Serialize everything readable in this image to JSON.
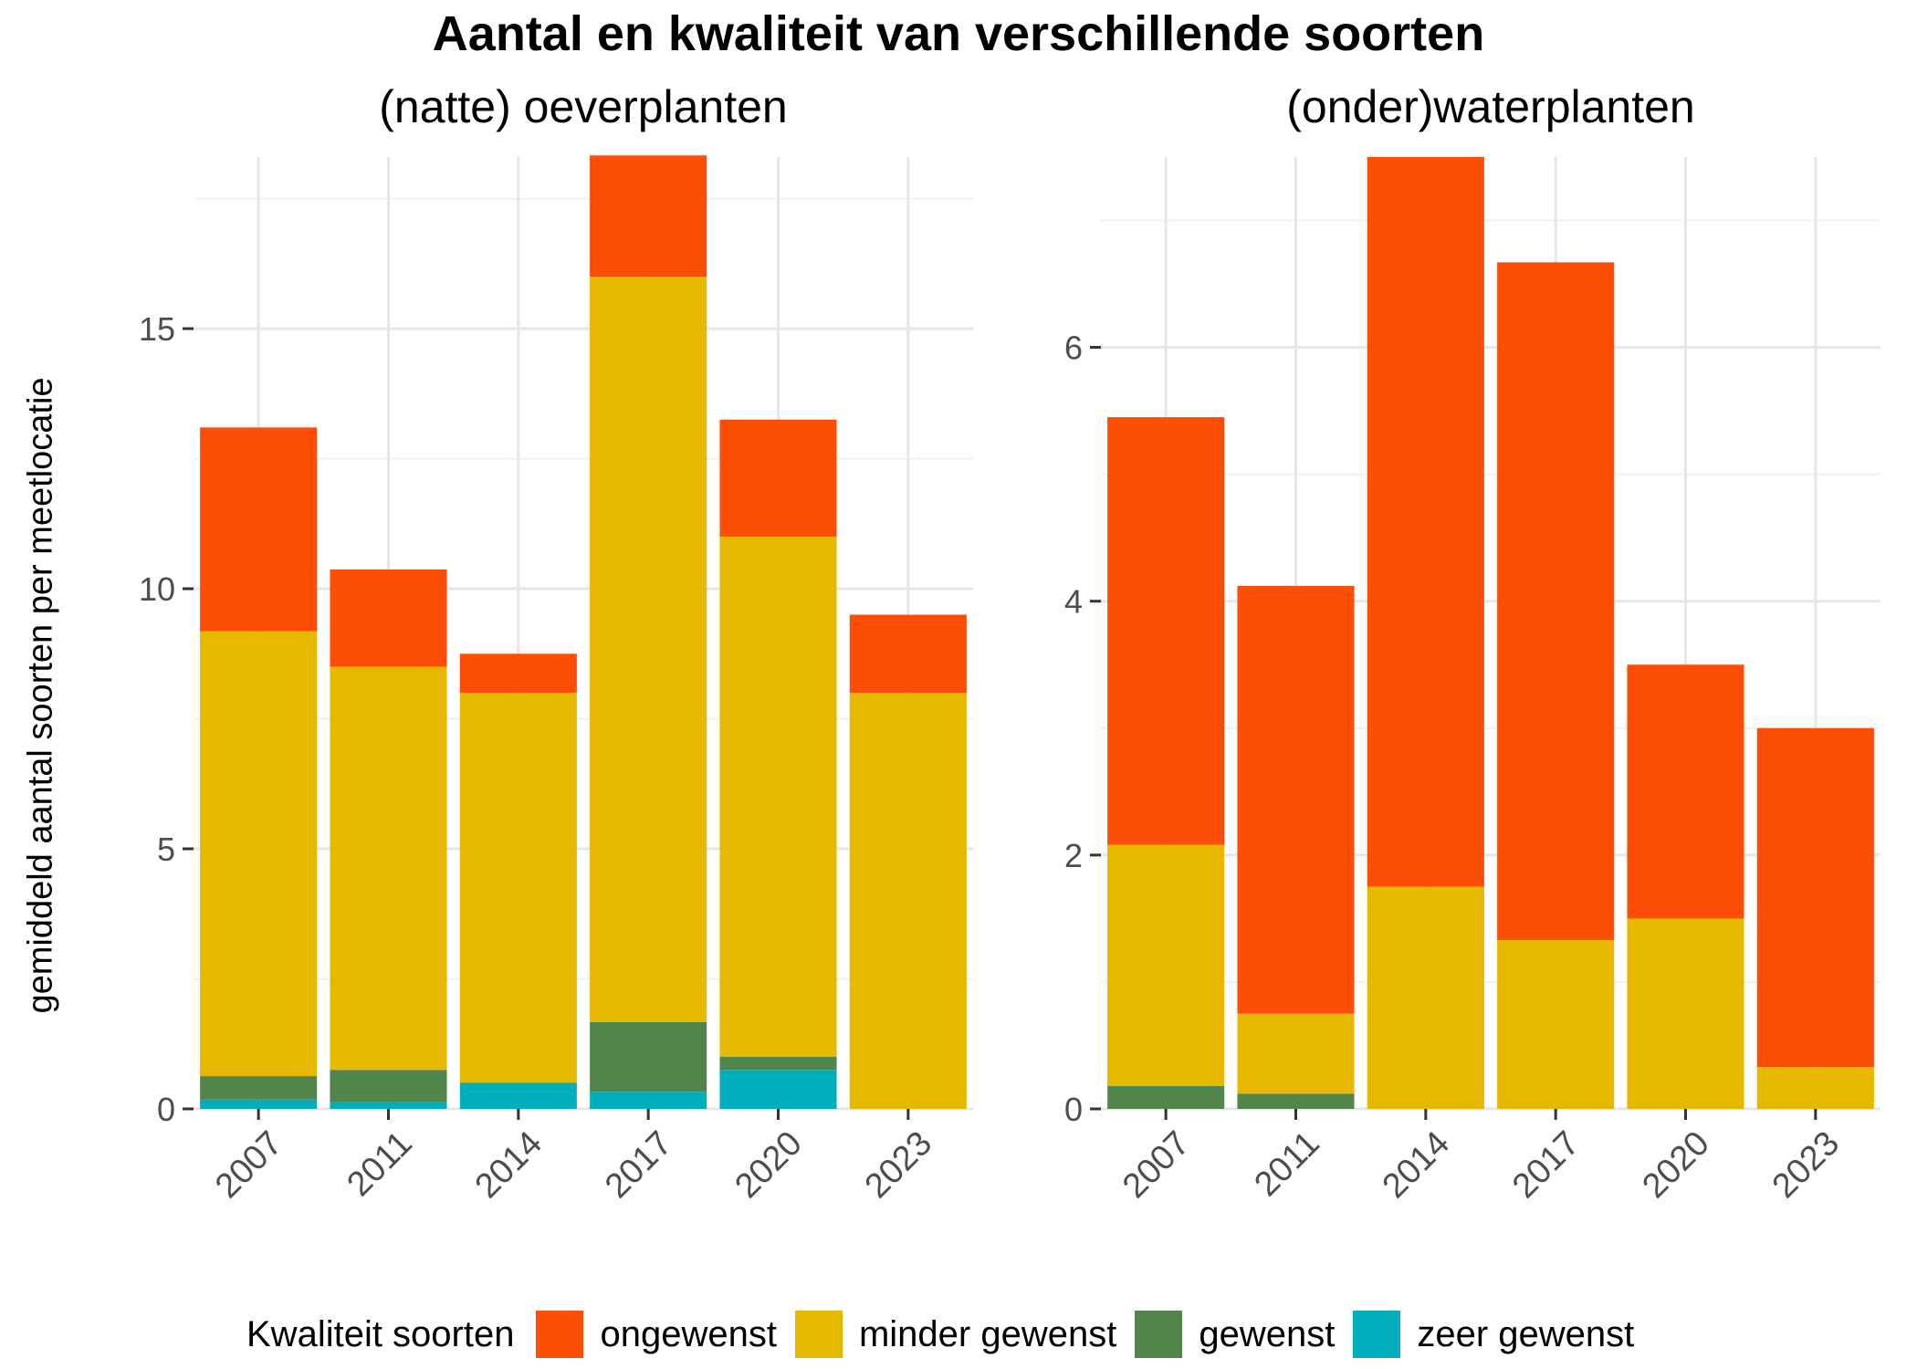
{
  "title": "Aantal en kwaliteit van verschillende soorten",
  "ylabel": "gemiddeld aantal soorten per meetlocatie",
  "legend": {
    "title": "Kwaliteit soorten",
    "items": [
      {
        "label": "ongewenst",
        "color": "#FC4E07"
      },
      {
        "label": "minder gewenst",
        "color": "#E7B800"
      },
      {
        "label": "gewenst",
        "color": "#52854C"
      },
      {
        "label": "zeer gewenst",
        "color": "#00AFBB"
      }
    ]
  },
  "chart_data": [
    {
      "type": "bar",
      "stacked": true,
      "title": "(natte) oeverplanten",
      "categories": [
        "2007",
        "2011",
        "2014",
        "2017",
        "2020",
        "2023"
      ],
      "ylim": [
        0,
        18.3
      ],
      "yticks": [
        0,
        5,
        10,
        15
      ],
      "grid": true,
      "series": [
        {
          "name": "zeer gewenst",
          "color": "#00AFBB",
          "values": [
            0.18,
            0.13,
            0.5,
            0.33,
            0.75,
            0
          ]
        },
        {
          "name": "gewenst",
          "color": "#52854C",
          "values": [
            0.45,
            0.62,
            0,
            1.34,
            0.25,
            0
          ]
        },
        {
          "name": "minder gewenst",
          "color": "#E7B800",
          "values": [
            8.55,
            7.75,
            7.5,
            14.33,
            10.0,
            8.0
          ]
        },
        {
          "name": "ongewenst",
          "color": "#FC4E07",
          "values": [
            3.92,
            1.87,
            0.75,
            2.33,
            2.25,
            1.5
          ]
        }
      ]
    },
    {
      "type": "bar",
      "stacked": true,
      "title": "(onder)waterplanten",
      "categories": [
        "2007",
        "2011",
        "2014",
        "2017",
        "2020",
        "2023"
      ],
      "ylim": [
        0,
        7.5
      ],
      "yticks": [
        0,
        2,
        4,
        6
      ],
      "grid": true,
      "series": [
        {
          "name": "zeer gewenst",
          "color": "#00AFBB",
          "values": [
            0,
            0,
            0,
            0,
            0,
            0
          ]
        },
        {
          "name": "gewenst",
          "color": "#52854C",
          "values": [
            0.18,
            0.12,
            0,
            0,
            0,
            0
          ]
        },
        {
          "name": "minder gewenst",
          "color": "#E7B800",
          "values": [
            1.9,
            0.63,
            1.75,
            1.33,
            1.5,
            0.33
          ]
        },
        {
          "name": "ongewenst",
          "color": "#FC4E07",
          "values": [
            3.37,
            3.37,
            5.75,
            5.34,
            2.0,
            2.67
          ]
        }
      ]
    }
  ]
}
